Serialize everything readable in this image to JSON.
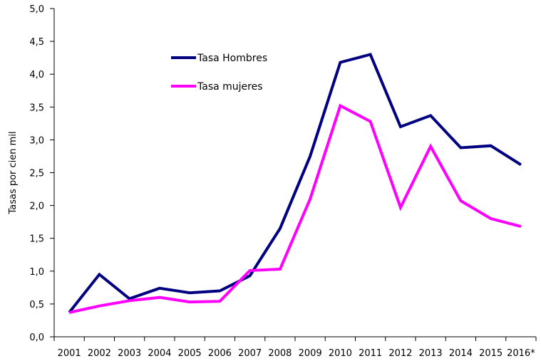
{
  "chart_data": {
    "type": "line",
    "title": "",
    "xlabel": "",
    "ylabel": "Tasas por cien mil",
    "categories": [
      "2001",
      "2002",
      "2003",
      "2004",
      "2005",
      "2006",
      "2007",
      "2008",
      "2009",
      "2010",
      "2011",
      "2012",
      "2013",
      "2014",
      "2015",
      "2016*"
    ],
    "ylim": [
      0,
      5
    ],
    "yticks": [
      "0,0",
      "0,5",
      "1,0",
      "1,5",
      "2,0",
      "2,5",
      "3,0",
      "3,5",
      "4,0",
      "4,5",
      "5,0"
    ],
    "grid": false,
    "legend_position": "top-center",
    "series": [
      {
        "name": "Tasa Hombres",
        "color": "#000080",
        "values": [
          0.37,
          0.95,
          0.58,
          0.74,
          0.67,
          0.7,
          0.93,
          1.65,
          2.75,
          4.18,
          4.3,
          3.2,
          3.37,
          2.88,
          2.91,
          2.62
        ]
      },
      {
        "name": "Tasa mujeres",
        "color": "#ff00ff",
        "values": [
          0.37,
          0.47,
          0.55,
          0.6,
          0.53,
          0.54,
          1.01,
          1.03,
          2.1,
          3.52,
          3.28,
          1.97,
          2.9,
          2.07,
          1.8,
          1.68
        ]
      }
    ]
  }
}
